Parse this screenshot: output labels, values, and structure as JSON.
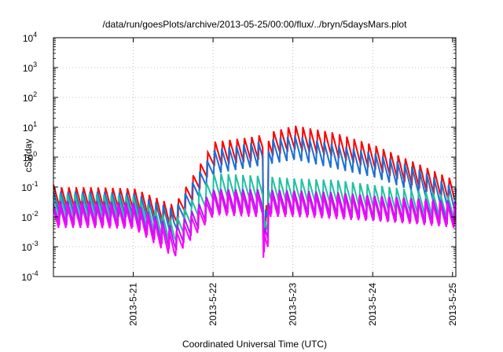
{
  "chart_data": {
    "type": "line",
    "title": "/data/run/goesPlots/archive/2013-05-25/00:00/flux/../bryn/5daysMars.plot",
    "xlabel": "Coordinated Universal Time (UTC)",
    "ylabel": "cSv/day",
    "y_scale": "log",
    "ylim": [
      0.0001,
      10000
    ],
    "y_ticks": [
      {
        "value": 0.0001,
        "base": "10",
        "exp": "-4"
      },
      {
        "value": 0.001,
        "base": "10",
        "exp": "-3"
      },
      {
        "value": 0.01,
        "base": "10",
        "exp": "-2"
      },
      {
        "value": 0.1,
        "base": "10",
        "exp": "-1"
      },
      {
        "value": 1,
        "base": "10",
        "exp": "0"
      },
      {
        "value": 10,
        "base": "10",
        "exp": "1"
      },
      {
        "value": 100,
        "base": "10",
        "exp": "2"
      },
      {
        "value": 1000,
        "base": "10",
        "exp": "3"
      },
      {
        "value": 10000,
        "base": "10",
        "exp": "4"
      }
    ],
    "xlim": [
      "2013-05-20T00:00",
      "2013-05-25T01:00"
    ],
    "x_ticks": [
      {
        "value": "2013-05-21T00:00",
        "label": "2013-5-21"
      },
      {
        "value": "2013-05-22T00:00",
        "label": "2013-5-22"
      },
      {
        "value": "2013-05-23T00:00",
        "label": "2013-5-23"
      },
      {
        "value": "2013-05-24T00:00",
        "label": "2013-5-24"
      },
      {
        "value": "2013-05-25T00:00",
        "label": "2013-5-25"
      }
    ],
    "grid": true,
    "event": {
      "time": "2013-05-22T16:30"
    },
    "series": [
      {
        "color": "#ff0000",
        "levels": [
          0.12,
          0.12,
          0.11,
          0.03,
          4.0,
          6.0,
          14.0,
          8.0,
          3.0,
          0.8,
          0.2
        ]
      },
      {
        "color": "#1a6fd4",
        "levels": [
          0.08,
          0.08,
          0.07,
          0.02,
          2.0,
          3.5,
          6.0,
          3.0,
          1.5,
          0.5,
          0.1
        ]
      },
      {
        "color": "#20c0a0",
        "levels": [
          0.06,
          0.06,
          0.05,
          0.008,
          0.3,
          0.25,
          0.2,
          0.18,
          0.12,
          0.08,
          0.05
        ]
      },
      {
        "color": "#a020f0",
        "levels": [
          0.04,
          0.04,
          0.035,
          0.005,
          0.1,
          0.1,
          0.09,
          0.08,
          0.06,
          0.05,
          0.04
        ]
      },
      {
        "color": "#ff00ff",
        "levels": [
          0.03,
          0.03,
          0.028,
          0.003,
          0.08,
          0.07,
          0.07,
          0.06,
          0.05,
          0.04,
          0.03
        ]
      }
    ]
  }
}
